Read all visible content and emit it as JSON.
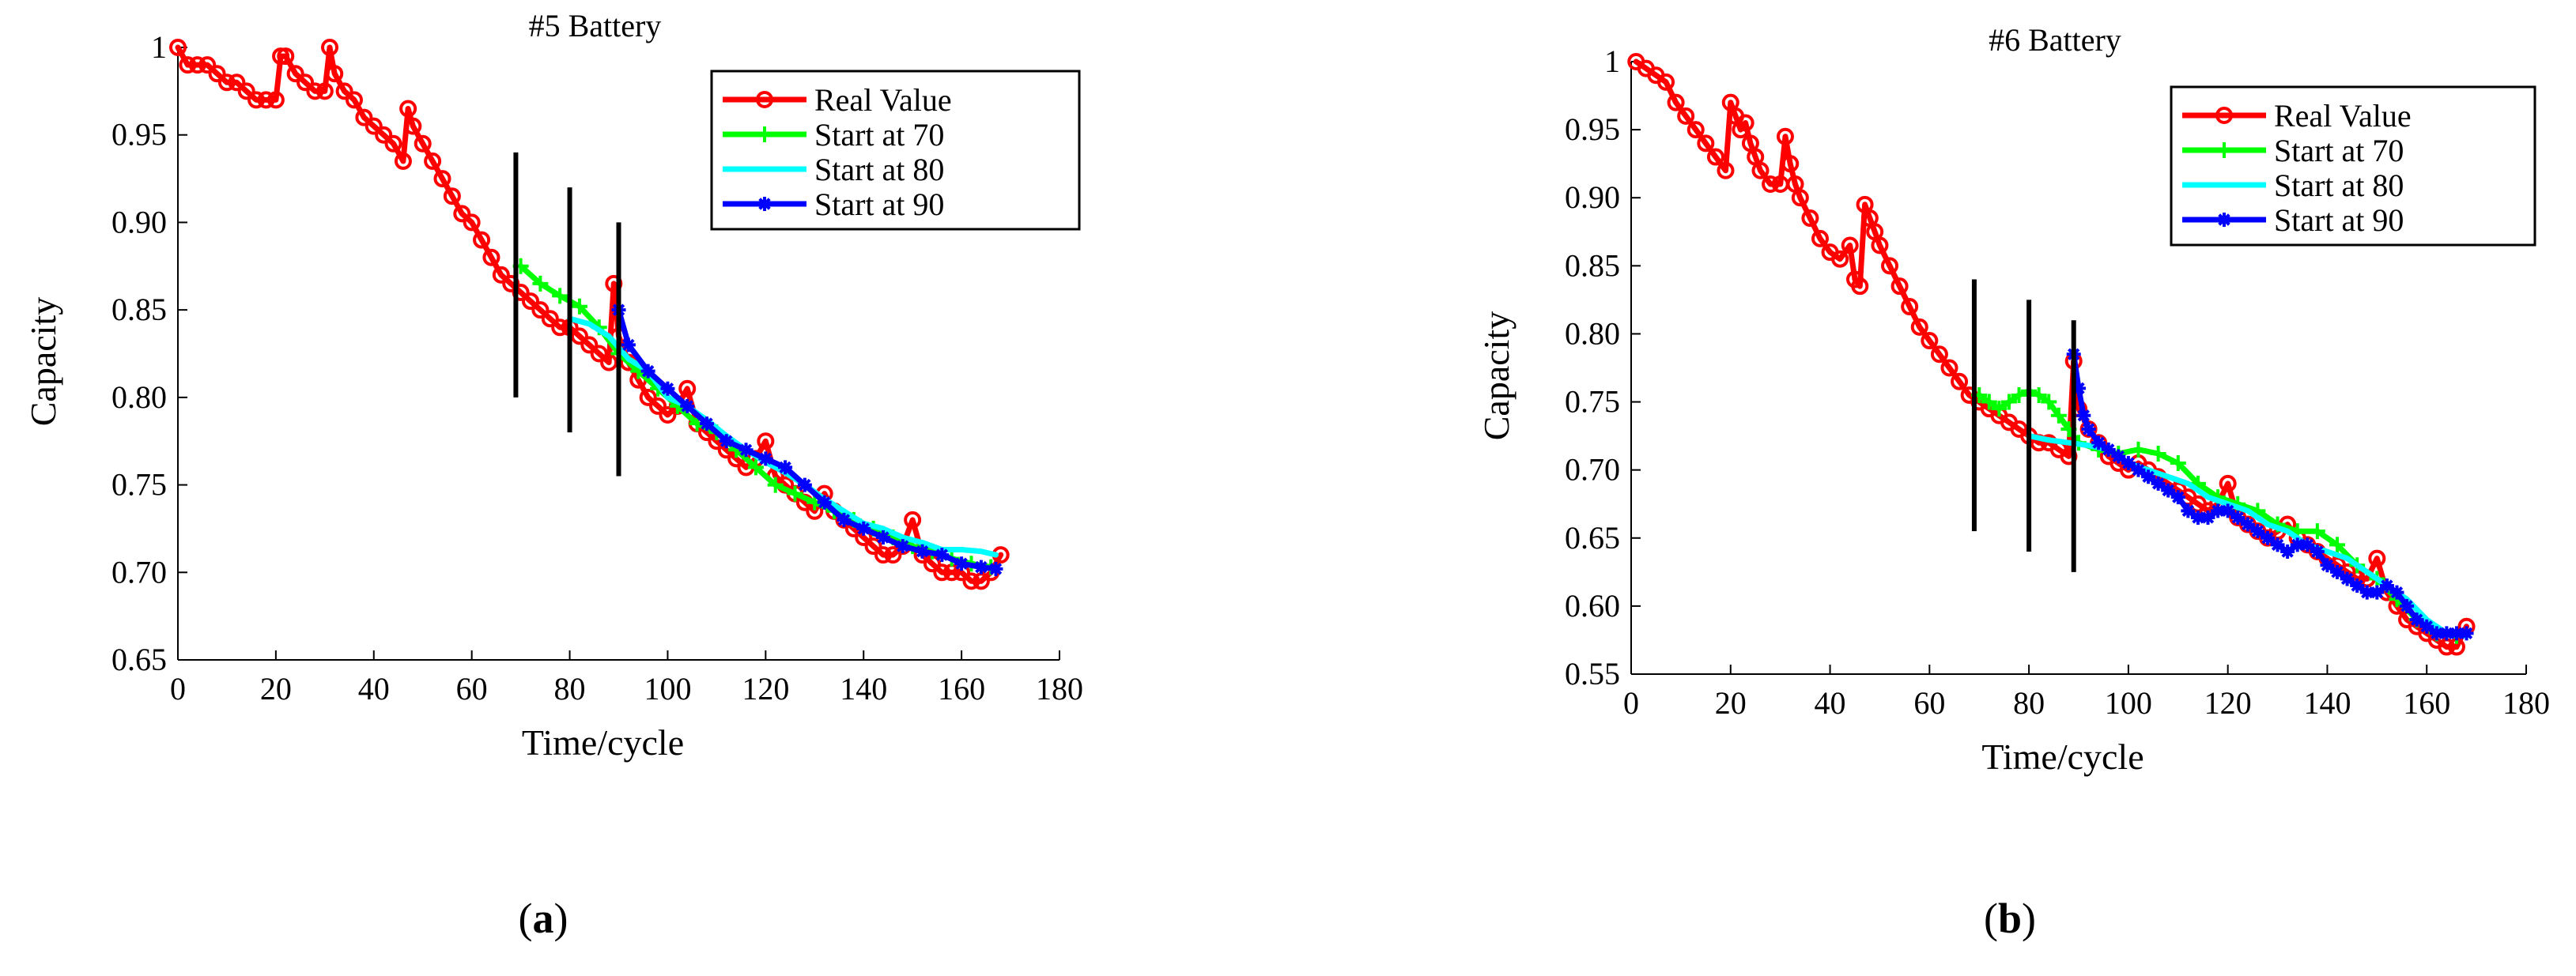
{
  "colors": {
    "real": "#ff0000",
    "start70": "#00ff00",
    "start80": "#00ffff",
    "start90": "#0000ff",
    "axis": "#000000",
    "marker_lines": "#000000"
  },
  "panels": [
    {
      "caption_letter": "a"
    },
    {
      "caption_letter": "b"
    }
  ],
  "chart_data": [
    {
      "type": "line",
      "title": "#5 Battery",
      "xlabel": "Time/cycle",
      "ylabel": "Capacity",
      "xlim": [
        0,
        180
      ],
      "ylim": [
        0.65,
        1.0
      ],
      "xticks": [
        "0",
        "20",
        "40",
        "60",
        "80",
        "100",
        "120",
        "140",
        "160",
        "180"
      ],
      "yticks": [
        "0.65",
        "0.70",
        "0.75",
        "0.80",
        "0.85",
        "0.90",
        "0.95",
        "1"
      ],
      "legend_position": "top-right",
      "vertical_markers": [
        {
          "x": 69,
          "y_range": [
            0.8,
            0.94
          ]
        },
        {
          "x": 80,
          "y_range": [
            0.78,
            0.92
          ]
        },
        {
          "x": 90,
          "y_range": [
            0.755,
            0.9
          ]
        }
      ],
      "series": [
        {
          "name": "Real Value",
          "color_key": "real",
          "marker": "o",
          "x": [
            0,
            2,
            4,
            6,
            8,
            10,
            12,
            14,
            16,
            18,
            20,
            21,
            22,
            24,
            26,
            28,
            30,
            31,
            32,
            34,
            36,
            38,
            40,
            42,
            44,
            46,
            47,
            48,
            50,
            52,
            54,
            56,
            58,
            60,
            62,
            64,
            66,
            68,
            70,
            72,
            74,
            76,
            78,
            80,
            82,
            84,
            86,
            88,
            89,
            90,
            92,
            94,
            96,
            98,
            100,
            102,
            104,
            106,
            108,
            110,
            112,
            114,
            116,
            118,
            120,
            122,
            124,
            126,
            128,
            130,
            132,
            134,
            136,
            138,
            140,
            142,
            144,
            146,
            148,
            150,
            152,
            154,
            156,
            158,
            160,
            162,
            164,
            166,
            168
          ],
          "y": [
            1.0,
            0.99,
            0.99,
            0.99,
            0.985,
            0.98,
            0.98,
            0.975,
            0.97,
            0.97,
            0.97,
            0.995,
            0.995,
            0.985,
            0.98,
            0.975,
            0.975,
            1.0,
            0.985,
            0.975,
            0.97,
            0.96,
            0.955,
            0.95,
            0.945,
            0.935,
            0.965,
            0.955,
            0.945,
            0.935,
            0.925,
            0.915,
            0.905,
            0.9,
            0.89,
            0.88,
            0.87,
            0.865,
            0.86,
            0.855,
            0.85,
            0.845,
            0.84,
            0.84,
            0.835,
            0.83,
            0.825,
            0.82,
            0.865,
            0.835,
            0.82,
            0.81,
            0.8,
            0.795,
            0.79,
            0.795,
            0.805,
            0.785,
            0.78,
            0.775,
            0.77,
            0.765,
            0.76,
            0.765,
            0.775,
            0.755,
            0.75,
            0.745,
            0.74,
            0.735,
            0.745,
            0.735,
            0.73,
            0.725,
            0.72,
            0.715,
            0.71,
            0.71,
            0.715,
            0.73,
            0.71,
            0.705,
            0.7,
            0.7,
            0.7,
            0.695,
            0.695,
            0.7,
            0.71
          ]
        },
        {
          "name": "Start at 70",
          "color_key": "start70",
          "marker": "+",
          "x": [
            70,
            74,
            78,
            82,
            86,
            90,
            94,
            98,
            102,
            106,
            110,
            114,
            118,
            122,
            126,
            130,
            134,
            138,
            142,
            146,
            150,
            154,
            158,
            162,
            166
          ],
          "y": [
            0.875,
            0.865,
            0.858,
            0.852,
            0.84,
            0.825,
            0.815,
            0.805,
            0.795,
            0.785,
            0.78,
            0.77,
            0.76,
            0.75,
            0.745,
            0.74,
            0.735,
            0.73,
            0.725,
            0.72,
            0.715,
            0.712,
            0.708,
            0.705,
            0.703
          ]
        },
        {
          "name": "Start at 80",
          "color_key": "start80",
          "marker": "none",
          "x": [
            80,
            84,
            88,
            92,
            96,
            100,
            104,
            108,
            112,
            116,
            120,
            124,
            128,
            132,
            136,
            140,
            144,
            148,
            152,
            156,
            160,
            164,
            167
          ],
          "y": [
            0.845,
            0.842,
            0.835,
            0.822,
            0.815,
            0.8,
            0.795,
            0.787,
            0.778,
            0.77,
            0.763,
            0.757,
            0.75,
            0.742,
            0.735,
            0.728,
            0.725,
            0.72,
            0.717,
            0.713,
            0.713,
            0.712,
            0.71
          ]
        },
        {
          "name": "Start at 90",
          "color_key": "start90",
          "marker": "*",
          "x": [
            90,
            92,
            96,
            100,
            104,
            108,
            112,
            116,
            120,
            124,
            128,
            132,
            136,
            140,
            144,
            148,
            152,
            156,
            160,
            164,
            167
          ],
          "y": [
            0.85,
            0.83,
            0.815,
            0.805,
            0.795,
            0.785,
            0.775,
            0.77,
            0.765,
            0.76,
            0.75,
            0.74,
            0.73,
            0.725,
            0.72,
            0.715,
            0.712,
            0.71,
            0.705,
            0.703,
            0.702
          ]
        }
      ]
    },
    {
      "type": "line",
      "title": "#6 Battery",
      "xlabel": "Time/cycle",
      "ylabel": "Capacity",
      "xlim": [
        0,
        180
      ],
      "ylim": [
        0.55,
        1.0
      ],
      "xticks": [
        "0",
        "20",
        "40",
        "60",
        "80",
        "100",
        "120",
        "140",
        "160",
        "180"
      ],
      "yticks": [
        "0.55",
        "0.60",
        "0.65",
        "0.70",
        "0.75",
        "0.80",
        "0.85",
        "0.90",
        "0.95",
        "1"
      ],
      "legend_position": "top-right",
      "vertical_markers": [
        {
          "x": 69,
          "y_range": [
            0.655,
            0.84
          ]
        },
        {
          "x": 80,
          "y_range": [
            0.64,
            0.825
          ]
        },
        {
          "x": 89,
          "y_range": [
            0.625,
            0.81
          ]
        }
      ],
      "series": [
        {
          "name": "Real Value",
          "color_key": "real",
          "marker": "o",
          "x": [
            1,
            3,
            5,
            7,
            9,
            11,
            13,
            15,
            17,
            19,
            20,
            21,
            22,
            23,
            24,
            25,
            26,
            28,
            30,
            31,
            32,
            33,
            34,
            36,
            38,
            40,
            42,
            44,
            45,
            46,
            47,
            48,
            49,
            50,
            52,
            54,
            56,
            58,
            60,
            62,
            64,
            66,
            68,
            70,
            72,
            74,
            76,
            78,
            80,
            82,
            84,
            86,
            88,
            89,
            90,
            92,
            94,
            96,
            98,
            100,
            102,
            104,
            106,
            108,
            110,
            112,
            114,
            116,
            118,
            120,
            122,
            124,
            126,
            128,
            130,
            132,
            134,
            136,
            138,
            140,
            142,
            144,
            146,
            148,
            150,
            152,
            154,
            156,
            158,
            160,
            162,
            164,
            166,
            168
          ],
          "y": [
            1.0,
            0.995,
            0.99,
            0.985,
            0.97,
            0.96,
            0.95,
            0.94,
            0.93,
            0.92,
            0.97,
            0.96,
            0.95,
            0.955,
            0.94,
            0.93,
            0.92,
            0.91,
            0.91,
            0.945,
            0.925,
            0.91,
            0.9,
            0.885,
            0.87,
            0.86,
            0.855,
            0.865,
            0.84,
            0.835,
            0.895,
            0.885,
            0.875,
            0.865,
            0.85,
            0.835,
            0.82,
            0.805,
            0.795,
            0.785,
            0.775,
            0.765,
            0.755,
            0.75,
            0.745,
            0.74,
            0.735,
            0.73,
            0.725,
            0.72,
            0.72,
            0.715,
            0.71,
            0.78,
            0.745,
            0.73,
            0.72,
            0.71,
            0.705,
            0.7,
            0.705,
            0.7,
            0.695,
            0.69,
            0.685,
            0.68,
            0.675,
            0.67,
            0.675,
            0.69,
            0.665,
            0.66,
            0.655,
            0.65,
            0.655,
            0.66,
            0.65,
            0.645,
            0.64,
            0.635,
            0.63,
            0.625,
            0.62,
            0.62,
            0.635,
            0.61,
            0.6,
            0.59,
            0.585,
            0.58,
            0.575,
            0.57,
            0.57,
            0.585
          ]
        },
        {
          "name": "Start at 70",
          "color_key": "start70",
          "marker": "+",
          "x": [
            70,
            72,
            74,
            76,
            78,
            80,
            82,
            84,
            86,
            88,
            90,
            94,
            98,
            102,
            106,
            110,
            114,
            118,
            122,
            126,
            130,
            134,
            138,
            142,
            146,
            150,
            154,
            158,
            162,
            166
          ],
          "y": [
            0.755,
            0.75,
            0.745,
            0.75,
            0.755,
            0.758,
            0.755,
            0.75,
            0.74,
            0.73,
            0.72,
            0.715,
            0.712,
            0.715,
            0.712,
            0.705,
            0.69,
            0.68,
            0.675,
            0.67,
            0.66,
            0.655,
            0.655,
            0.645,
            0.63,
            0.62,
            0.605,
            0.59,
            0.58,
            0.578
          ]
        },
        {
          "name": "Start at 80",
          "color_key": "start80",
          "marker": "none",
          "x": [
            80,
            84,
            88,
            92,
            96,
            100,
            104,
            108,
            112,
            116,
            120,
            124,
            128,
            132,
            136,
            140,
            144,
            148,
            152,
            156,
            160,
            164,
            168
          ],
          "y": [
            0.725,
            0.722,
            0.72,
            0.718,
            0.715,
            0.705,
            0.7,
            0.695,
            0.69,
            0.68,
            0.675,
            0.67,
            0.66,
            0.655,
            0.645,
            0.64,
            0.635,
            0.625,
            0.615,
            0.605,
            0.59,
            0.58,
            0.578
          ]
        },
        {
          "name": "Start at 90",
          "color_key": "start90",
          "marker": "*",
          "x": [
            89,
            90,
            91,
            92,
            94,
            96,
            98,
            100,
            102,
            104,
            106,
            108,
            110,
            112,
            114,
            116,
            118,
            120,
            122,
            124,
            126,
            128,
            130,
            132,
            134,
            136,
            138,
            140,
            142,
            144,
            146,
            148,
            150,
            152,
            154,
            156,
            158,
            160,
            162,
            164,
            166,
            168
          ],
          "y": [
            0.785,
            0.76,
            0.74,
            0.73,
            0.72,
            0.715,
            0.71,
            0.705,
            0.7,
            0.695,
            0.69,
            0.685,
            0.68,
            0.67,
            0.665,
            0.665,
            0.67,
            0.67,
            0.665,
            0.66,
            0.655,
            0.65,
            0.645,
            0.64,
            0.645,
            0.645,
            0.64,
            0.63,
            0.625,
            0.62,
            0.615,
            0.61,
            0.61,
            0.615,
            0.61,
            0.6,
            0.59,
            0.585,
            0.58,
            0.58,
            0.58,
            0.58
          ]
        }
      ]
    }
  ]
}
